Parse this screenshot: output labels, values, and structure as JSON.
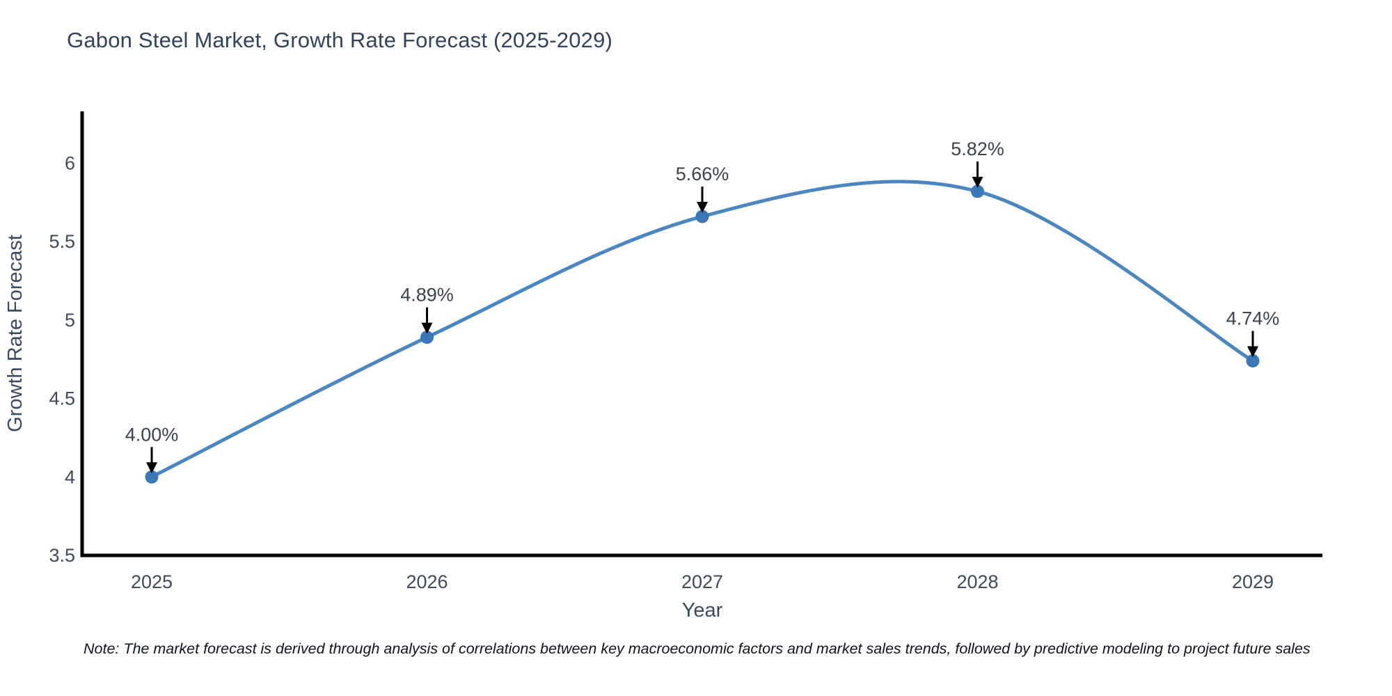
{
  "chart_data": {
    "type": "line",
    "title": "Gabon Steel Market, Growth Rate Forecast (2025-2029)",
    "xlabel": "Year",
    "ylabel": "Growth Rate Forecast",
    "categories": [
      "2025",
      "2026",
      "2027",
      "2028",
      "2029"
    ],
    "values": [
      4.0,
      4.89,
      5.66,
      5.82,
      4.74
    ],
    "point_labels": [
      "4.00%",
      "4.89%",
      "5.66%",
      "5.82%",
      "4.74%"
    ],
    "series_name": "Growth Rate Forecast",
    "y_ticks": [
      3.5,
      4,
      4.5,
      5,
      5.5,
      6
    ],
    "y_tick_labels": [
      "3.5",
      "4",
      "4.5",
      "5",
      "5.5",
      "6"
    ],
    "ylim": [
      3.5,
      6.33
    ],
    "line_shape": "spline",
    "grid": false,
    "legend": "none",
    "colors": {
      "line": "#4a86c0",
      "marker": "#3a78b8",
      "axis": "#000000",
      "title_text": "#32435f",
      "tick_text": "#3f4a5c",
      "axis_title_text": "#3b4a63",
      "annotation_text": "#3d434d",
      "arrow": "#000000",
      "background": "#ffffff"
    }
  },
  "note": {
    "text": "Note: The market forecast is derived through analysis of correlations between key macroeconomic factors and market sales trends, followed by predictive modeling to project future sales"
  }
}
